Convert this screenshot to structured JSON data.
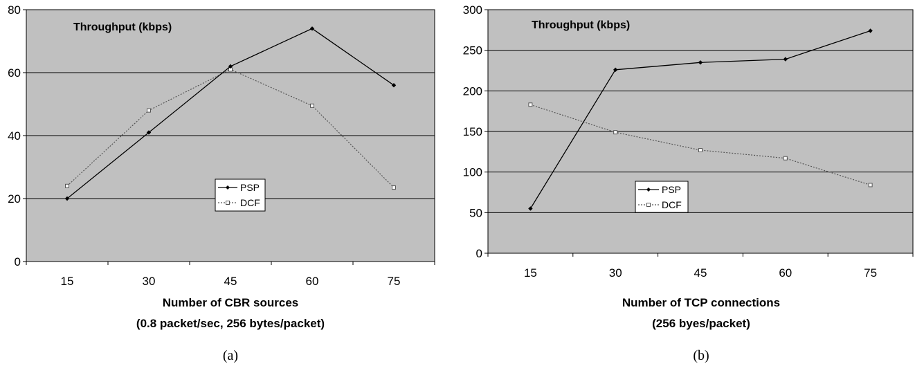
{
  "chart_data": [
    {
      "type": "line",
      "title": "Throughput (kbps)",
      "xlabel": "Number of CBR sources",
      "xlabel2": "(0.8 packet/sec, 256 bytes/packet)",
      "caption": "(a)",
      "categories": [
        "15",
        "30",
        "45",
        "60",
        "75"
      ],
      "ylim": [
        0,
        80
      ],
      "yticks": [
        0,
        20,
        40,
        60,
        80
      ],
      "grid": true,
      "legend_position": "center",
      "series": [
        {
          "name": "PSP",
          "values": [
            20,
            41,
            62,
            74,
            56
          ],
          "color": "#000000",
          "style": "solid",
          "marker": "diamond"
        },
        {
          "name": "DCF",
          "values": [
            24,
            48,
            61,
            49.5,
            23.5
          ],
          "color": "#555555",
          "style": "dotted",
          "marker": "square"
        }
      ]
    },
    {
      "type": "line",
      "title": "Throughput (kbps)",
      "xlabel": "Number of TCP connections",
      "xlabel2": "(256 byes/packet)",
      "caption": "(b)",
      "categories": [
        "15",
        "30",
        "45",
        "60",
        "75"
      ],
      "ylim": [
        0,
        300
      ],
      "yticks": [
        0,
        50,
        100,
        150,
        200,
        250,
        300
      ],
      "grid": true,
      "legend_position": "lower-left",
      "series": [
        {
          "name": "PSP",
          "values": [
            55,
            226,
            235,
            239,
            274
          ],
          "color": "#000000",
          "style": "solid",
          "marker": "diamond"
        },
        {
          "name": "DCF",
          "values": [
            183,
            149,
            127,
            117,
            84
          ],
          "color": "#555555",
          "style": "dotted",
          "marker": "square"
        }
      ]
    }
  ]
}
